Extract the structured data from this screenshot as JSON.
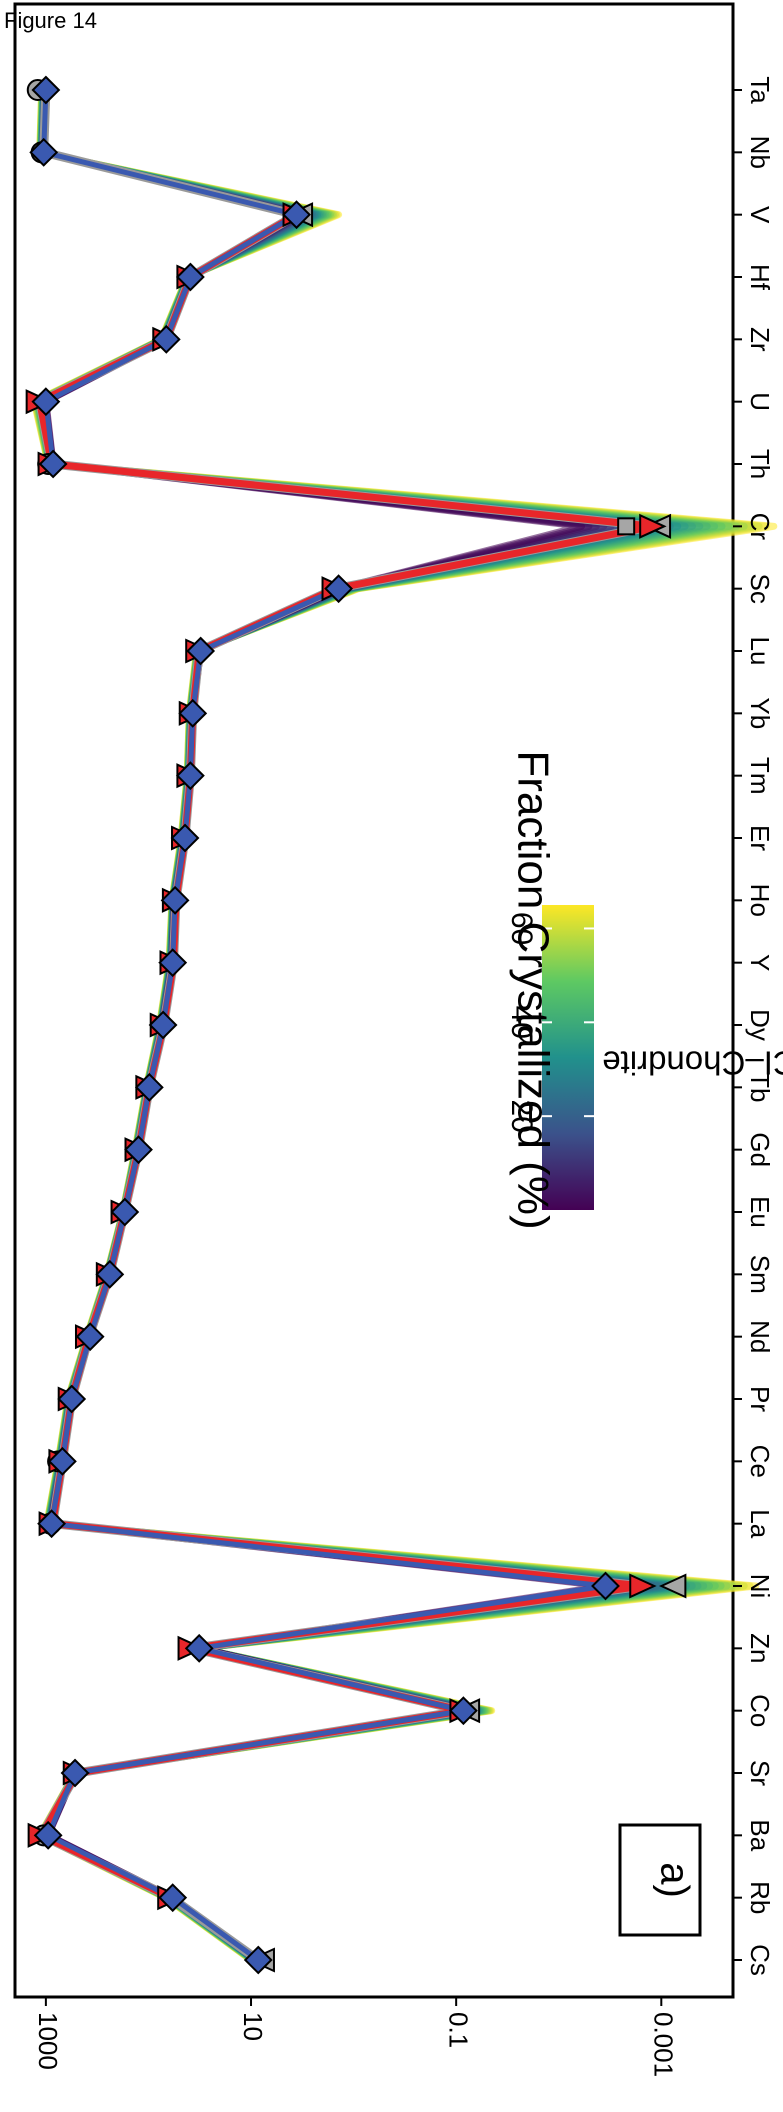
{
  "figure_label": "Figure 14",
  "chart_data": {
    "type": "line",
    "panel_label": "a)",
    "ylabel": "Sample/CI–Chondrite",
    "xlabel": "",
    "y_scale": "log",
    "ylim": [
      0.0002,
      2000
    ],
    "y_ticks": [
      {
        "value": 1000,
        "label": "1000"
      },
      {
        "value": 10,
        "label": "10"
      },
      {
        "value": 0.1,
        "label": "0.1"
      },
      {
        "value": 0.001,
        "label": "0.001"
      }
    ],
    "categories": [
      "Cs",
      "Rb",
      "Ba",
      "Sr",
      "Co",
      "Zn",
      "Ni",
      "La",
      "Ce",
      "Pr",
      "Nd",
      "Sm",
      "Eu",
      "Gd",
      "Tb",
      "Dy",
      "Y",
      "Ho",
      "Er",
      "Tm",
      "Yb",
      "Lu",
      "Sc",
      "Cr",
      "Th",
      "U",
      "Zr",
      "Hf",
      "V",
      "Nb",
      "Ta"
    ],
    "series": [
      {
        "marker": "circle",
        "color": "#a6a6a6",
        "values": [
          null,
          null,
          1050,
          null,
          null,
          null,
          null,
          900,
          760,
          null,
          null,
          null,
          null,
          null,
          null,
          null,
          null,
          null,
          null,
          null,
          null,
          null,
          null,
          null,
          950,
          null,
          null,
          null,
          null,
          1100,
          1200
        ]
      },
      {
        "marker": "triangle-down",
        "color": "#e8262a",
        "values": [
          null,
          60,
          1100,
          500,
          0.085,
          38,
          0.0015,
          860,
          690,
          560,
          380,
          238,
          171,
          125,
          98,
          71,
          57,
          54,
          44,
          39,
          37,
          32,
          1.5,
          0.0012,
          880,
          1150,
          67,
          39,
          3.6,
          null,
          null
        ]
      },
      {
        "marker": "triangle-up",
        "color": "#a6a6a6",
        "values": [
          8.0,
          null,
          null,
          null,
          0.08,
          null,
          0.00078,
          null,
          null,
          null,
          null,
          null,
          null,
          null,
          null,
          null,
          null,
          null,
          null,
          null,
          null,
          null,
          null,
          0.0011,
          null,
          null,
          null,
          null,
          3.4,
          null,
          null
        ]
      },
      {
        "marker": "square",
        "color": "#a6a6a6",
        "values": [
          null,
          null,
          null,
          null,
          null,
          null,
          null,
          null,
          null,
          null,
          null,
          null,
          null,
          null,
          null,
          null,
          null,
          null,
          null,
          null,
          null,
          null,
          null,
          0.0022,
          null,
          null,
          null,
          null,
          null,
          null,
          null
        ]
      },
      {
        "marker": "diamond",
        "color": "#3a59b0",
        "values": [
          8.5,
          58,
          950,
          520,
          0.085,
          32,
          0.0035,
          880,
          690,
          560,
          370,
          238,
          170,
          125,
          98,
          72,
          58,
          55,
          44,
          39,
          37,
          31,
          1.4,
          null,
          850,
          1000,
          67,
          39,
          3.6,
          1050,
          1000
        ]
      }
    ],
    "model_band": {
      "start_values": [
        8.5,
        58,
        950,
        520,
        0.085,
        32,
        0.0035,
        880,
        690,
        560,
        370,
        238,
        170,
        125,
        98,
        72,
        58,
        55,
        44,
        39,
        37,
        31,
        1.4,
        0.006,
        850,
        1000,
        67,
        39,
        3.6,
        1050,
        1000
      ],
      "end_values": [
        10.0,
        68,
        1150,
        520,
        0.045,
        32,
        0.00012,
        980,
        760,
        610,
        400,
        255,
        178,
        135,
        105,
        78,
        63,
        59,
        48,
        42,
        40,
        34,
        0.9,
        8e-05,
        950,
        1300,
        75,
        42,
        1.4,
        1150,
        1100
      ],
      "fraction_min": 0,
      "fraction_max": 65
    },
    "colorbar": {
      "title": "Fraction Crystallized (%)",
      "ticks": [
        20,
        40,
        60
      ],
      "min": 0,
      "max": 65,
      "colors": [
        "#440154",
        "#3b528b",
        "#21918c",
        "#5ec962",
        "#fde725"
      ]
    },
    "legend": "none",
    "grid": false
  }
}
